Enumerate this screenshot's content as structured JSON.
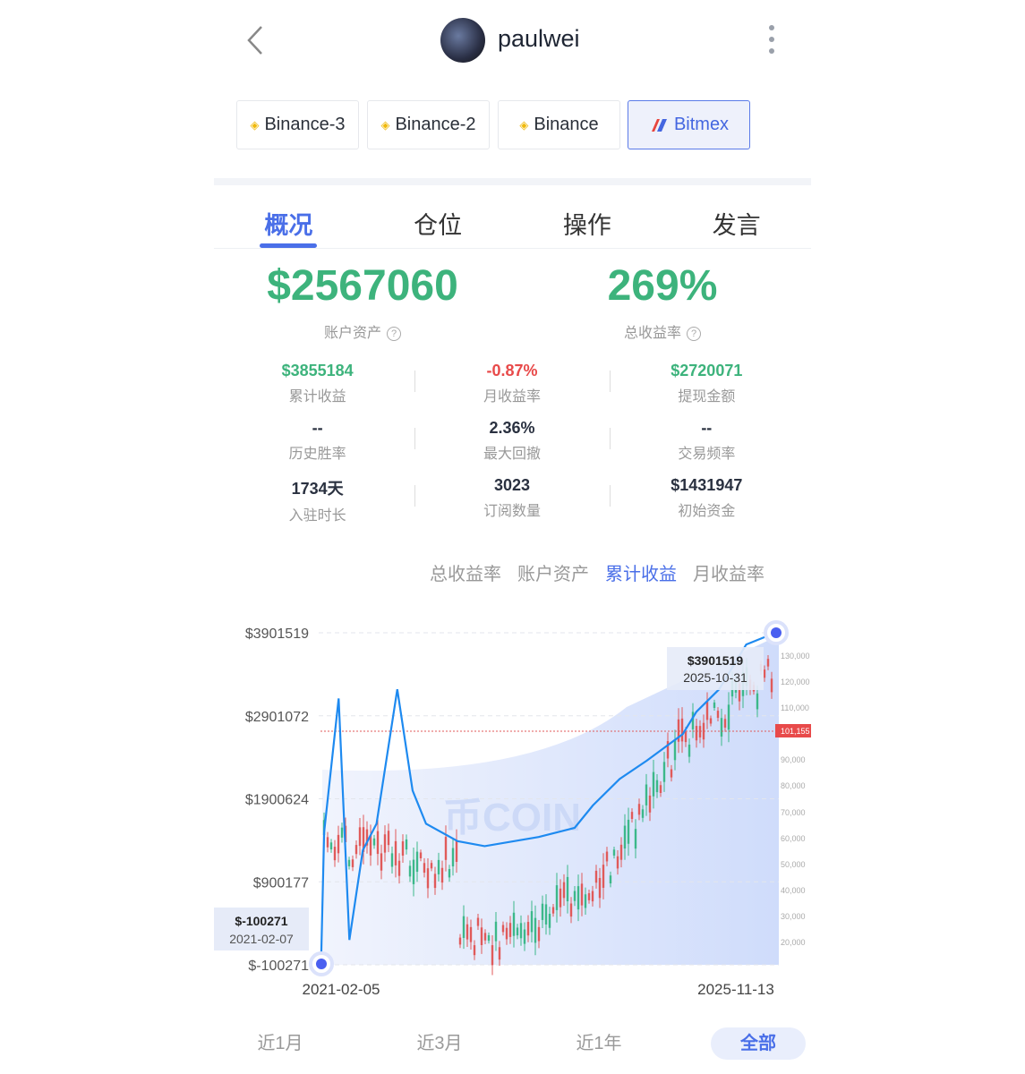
{
  "header": {
    "username": "paulwei",
    "back_icon": "chevron-left-icon",
    "more_icon": "more-vertical-icon"
  },
  "exchanges": [
    {
      "label": "Binance-3",
      "icon": "binance-icon"
    },
    {
      "label": "Binance-2",
      "icon": "binance-icon"
    },
    {
      "label": "Binance",
      "icon": "binance-icon"
    },
    {
      "label": "Bitmex",
      "icon": "bitmex-icon",
      "active": true
    }
  ],
  "tabs": [
    {
      "label": "概况",
      "active": true
    },
    {
      "label": "仓位"
    },
    {
      "label": "操作"
    },
    {
      "label": "发言"
    }
  ],
  "summary": {
    "assets": "$2567060",
    "assets_label": "账户资产",
    "return": "269%",
    "return_label": "总收益率"
  },
  "stats": [
    [
      {
        "value": "$3855184",
        "label": "累计收益",
        "color": "green"
      },
      {
        "value": "-0.87%",
        "label": "月收益率",
        "color": "red"
      },
      {
        "value": "$2720071",
        "label": "提现金额",
        "color": "green"
      }
    ],
    [
      {
        "value": "--",
        "label": "历史胜率"
      },
      {
        "value": "2.36%",
        "label": "最大回撤"
      },
      {
        "value": "--",
        "label": "交易频率"
      }
    ],
    [
      {
        "value": "1734天",
        "label": "入驻时长"
      },
      {
        "value": "3023",
        "label": "订阅数量"
      },
      {
        "value": "$1431947",
        "label": "初始资金"
      }
    ]
  ],
  "chart_tabs": [
    {
      "label": "总收益率"
    },
    {
      "label": "账户资产"
    },
    {
      "label": "累计收益",
      "active": true
    },
    {
      "label": "月收益率"
    }
  ],
  "chart_data": {
    "type": "line",
    "y_ticks": [
      "$3901519",
      "$2901072",
      "$1900624",
      "$900177",
      "$-100271"
    ],
    "ylim": [
      -100271,
      3901519
    ],
    "x_labels": [
      "2021-02-05",
      "2025-11-13"
    ],
    "series": [
      {
        "color": "#1e8af0",
        "points": [
          [
            "2021-02-07",
            -100271
          ],
          [
            "2021-02-19",
            1500000
          ],
          [
            "2021-04-15",
            3110000
          ],
          [
            "2021-05-26",
            200000
          ],
          [
            "2021-07-16",
            1280000
          ],
          [
            "2021-09-06",
            1600000
          ],
          [
            "2021-11-24",
            3220000
          ],
          [
            "2022-01-21",
            2000000
          ],
          [
            "2022-03-13",
            1600000
          ],
          [
            "2022-07-11",
            1390000
          ],
          [
            "2022-10-22",
            1330000
          ],
          [
            "2023-05-15",
            1440000
          ],
          [
            "2023-09-29",
            1550000
          ],
          [
            "2023-12-07",
            1820000
          ],
          [
            "2024-03-18",
            2140000
          ],
          [
            "2024-06-29",
            2360000
          ],
          [
            "2024-11-13",
            2680000
          ],
          [
            "2025-01-04",
            2950000
          ],
          [
            "2025-03-31",
            3220000
          ],
          [
            "2025-07-12",
            3760000
          ],
          [
            "2025-10-31",
            3901519
          ]
        ]
      }
    ],
    "tooltip_max": {
      "value": "$3901519",
      "date": "2025-10-31"
    },
    "tooltip_min": {
      "value": "$-100271",
      "date": "2021-02-07"
    },
    "background_price_axis": [
      "130,000",
      "120,000",
      "110,000",
      "90,000",
      "80,000",
      "70,000",
      "60,000",
      "50,000",
      "40,000",
      "30,000",
      "20,000"
    ],
    "background_price_last": "101,155",
    "watermark": "币COIN"
  },
  "ranges": [
    {
      "label": "近1月"
    },
    {
      "label": "近3月"
    },
    {
      "label": "近1年"
    },
    {
      "label": "全部",
      "active": true
    }
  ]
}
